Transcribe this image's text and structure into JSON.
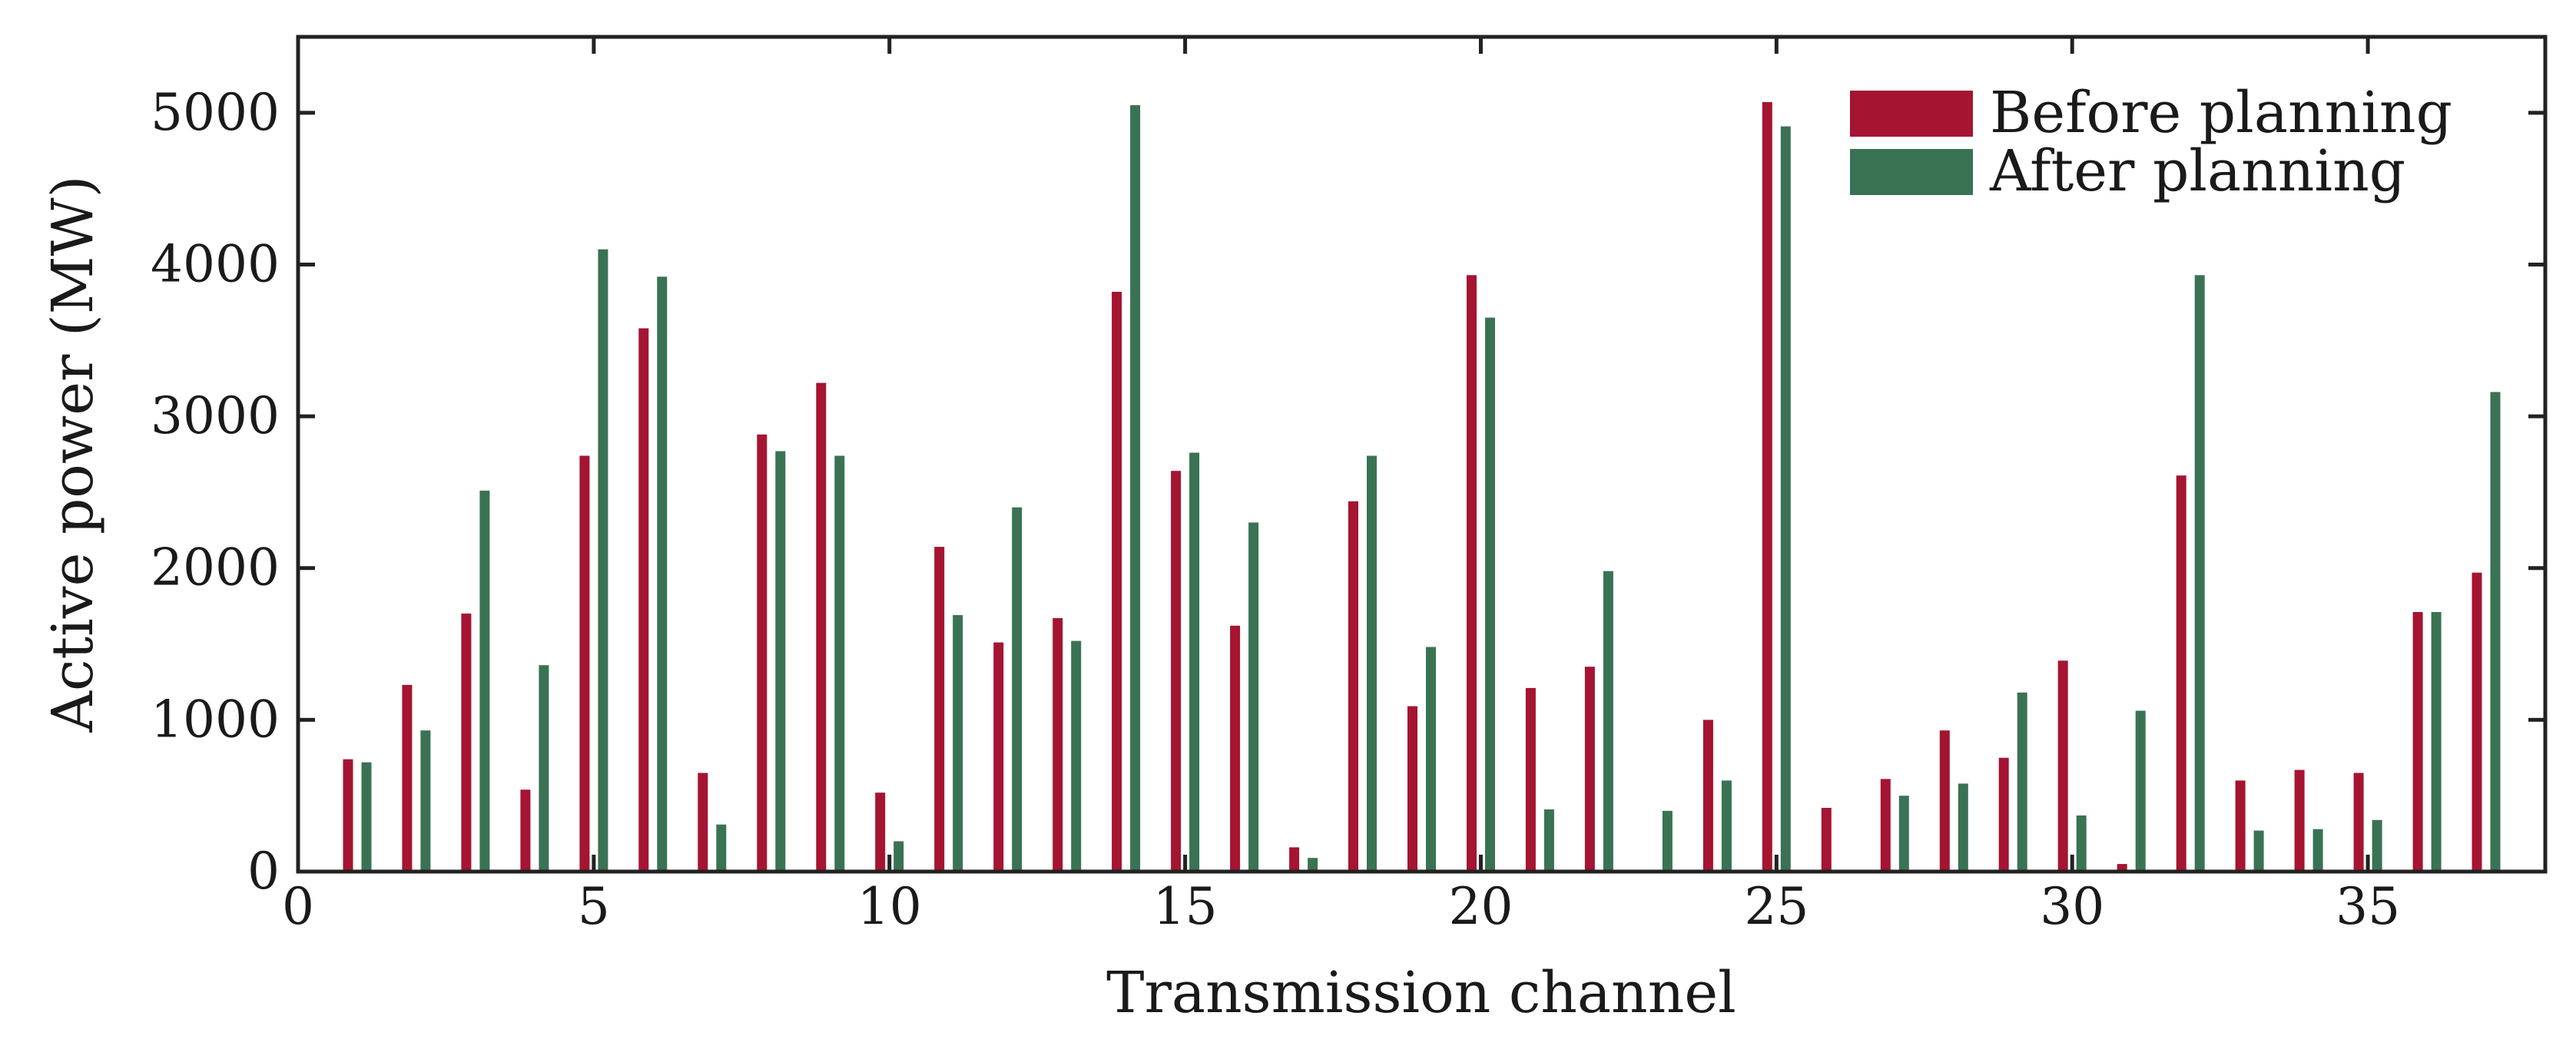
{
  "chart_data": {
    "type": "bar",
    "xlabel": "Transmission channel",
    "ylabel": "Active power (MW)",
    "xlim": [
      0,
      38
    ],
    "ylim": [
      0,
      5500
    ],
    "xticks": [
      0,
      5,
      10,
      15,
      20,
      25,
      30,
      35
    ],
    "yticks": [
      0,
      1000,
      2000,
      3000,
      4000,
      5000
    ],
    "legend": "top-right",
    "grid": false,
    "categories": [
      1,
      2,
      3,
      4,
      5,
      6,
      7,
      8,
      9,
      10,
      11,
      12,
      13,
      14,
      15,
      16,
      17,
      18,
      19,
      20,
      21,
      22,
      23,
      24,
      25,
      26,
      27,
      28,
      29,
      30,
      31,
      32,
      33,
      34,
      35,
      36,
      37
    ],
    "series": [
      {
        "name": "Before planning",
        "color": "#a51431",
        "values": [
          740,
          1230,
          1700,
          540,
          2740,
          3580,
          650,
          2880,
          3220,
          520,
          2140,
          1510,
          1670,
          3820,
          2640,
          1620,
          160,
          2440,
          1090,
          3930,
          1210,
          1350,
          0,
          1000,
          5070,
          420,
          610,
          930,
          750,
          1390,
          50,
          2610,
          600,
          670,
          650,
          1710,
          1970
        ]
      },
      {
        "name": "After planning",
        "color": "#3a7254",
        "values": [
          720,
          930,
          2510,
          1360,
          4100,
          3920,
          310,
          2770,
          2740,
          200,
          1690,
          2400,
          1520,
          5050,
          2760,
          2300,
          90,
          2740,
          1480,
          3650,
          410,
          1980,
          400,
          600,
          4910,
          0,
          500,
          580,
          1180,
          370,
          1060,
          3930,
          270,
          280,
          340,
          1710,
          3160
        ]
      }
    ]
  }
}
